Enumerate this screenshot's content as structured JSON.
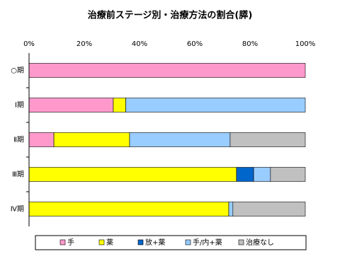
{
  "chart_data": {
    "type": "stacked-bar-horizontal",
    "title": "治療前ステージ別・治療方法の割合(膵)",
    "categories": [
      "○期",
      "Ⅰ期",
      "Ⅱ期",
      "Ⅲ期",
      "Ⅳ期"
    ],
    "series": [
      {
        "name": "手",
        "color": "#ff99cc",
        "values": [
          100,
          30.5,
          9,
          0,
          0
        ]
      },
      {
        "name": "薬",
        "color": "#ffff00",
        "values": [
          0,
          4.5,
          27.4,
          75.1,
          72.3
        ]
      },
      {
        "name": "放+薬",
        "color": "#0066cc",
        "values": [
          0,
          0,
          0,
          6.2,
          0
        ]
      },
      {
        "name": "手/内+薬",
        "color": "#99ccff",
        "values": [
          0,
          65,
          36.4,
          6.1,
          1.5
        ]
      },
      {
        "name": "治療なし",
        "color": "#c0c0c0",
        "values": [
          0,
          0,
          27.2,
          12.6,
          26.2
        ]
      }
    ],
    "xlim": [
      0,
      100
    ],
    "xticks": [
      {
        "value": 0,
        "label": "0%"
      },
      {
        "value": 20,
        "label": "20%"
      },
      {
        "value": 40,
        "label": "40%"
      },
      {
        "value": 60,
        "label": "60%"
      },
      {
        "value": 80,
        "label": "80%"
      },
      {
        "value": 100,
        "label": "100%"
      }
    ],
    "legend": "bottom"
  }
}
